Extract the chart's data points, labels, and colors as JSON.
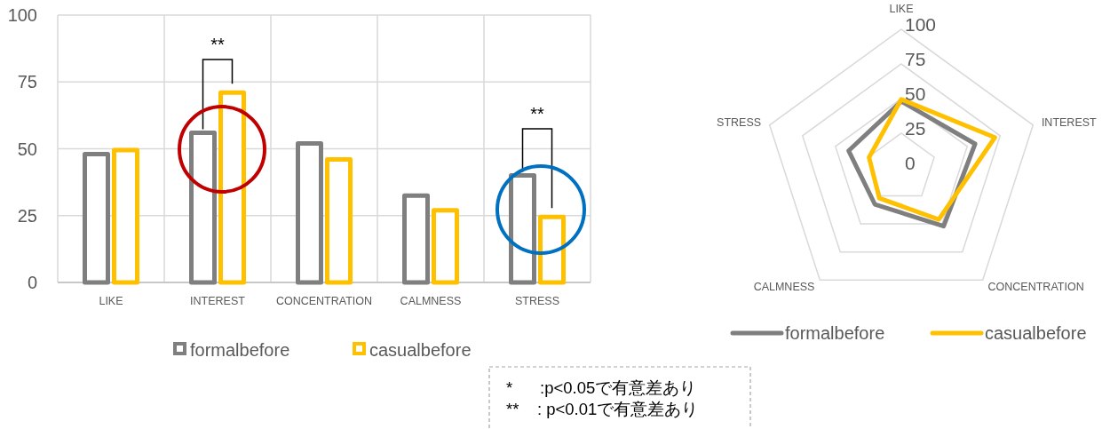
{
  "chart_data": [
    {
      "type": "bar",
      "categories": [
        "LIKE",
        "INTEREST",
        "CONCENTRATION",
        "CALMNESS",
        "STRESS"
      ],
      "series": [
        {
          "name": "formalbefore",
          "color": "#7f7f7f",
          "values": [
            48,
            56,
            52,
            32.5,
            40
          ]
        },
        {
          "name": "casualbefore",
          "color": "#ffc000",
          "values": [
            49.5,
            71,
            46,
            27,
            24.5
          ]
        }
      ],
      "ylim": [
        0,
        100
      ],
      "yticks": [
        0,
        25,
        50,
        75,
        100
      ],
      "grid": true,
      "legend": "bottom",
      "annotations": [
        "**",
        "**",
        "*      :p<0.05で有意差あり",
        "**    : p<0.01で有意差あり"
      ]
    },
    {
      "type": "radar",
      "categories": [
        "LIKE",
        "INTEREST",
        "CONCENTRATION",
        "CALMNESS",
        "STRESS"
      ],
      "series": [
        {
          "name": "formalbefore",
          "color": "#7f7f7f",
          "values": [
            48,
            56,
            52,
            32.5,
            40
          ]
        },
        {
          "name": "casualbefore",
          "color": "#ffc000",
          "values": [
            49.5,
            71,
            46,
            27,
            24.5
          ]
        }
      ],
      "ylim": [
        0,
        100
      ],
      "yticks": [
        0,
        25,
        50,
        75,
        100
      ],
      "grid": true,
      "legend": "bottom"
    }
  ]
}
